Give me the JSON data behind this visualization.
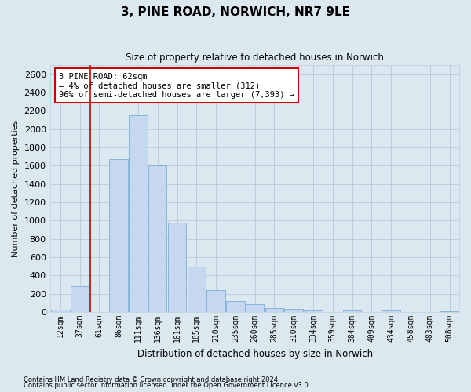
{
  "title": "3, PINE ROAD, NORWICH, NR7 9LE",
  "subtitle": "Size of property relative to detached houses in Norwich",
  "xlabel": "Distribution of detached houses by size in Norwich",
  "ylabel": "Number of detached properties",
  "categories": [
    "12sqm",
    "37sqm",
    "61sqm",
    "86sqm",
    "111sqm",
    "136sqm",
    "161sqm",
    "185sqm",
    "210sqm",
    "235sqm",
    "260sqm",
    "285sqm",
    "310sqm",
    "334sqm",
    "359sqm",
    "384sqm",
    "409sqm",
    "434sqm",
    "458sqm",
    "483sqm",
    "508sqm"
  ],
  "values": [
    25,
    280,
    0,
    1670,
    2150,
    1600,
    975,
    500,
    245,
    120,
    90,
    40,
    35,
    22,
    0,
    15,
    0,
    18,
    0,
    0,
    8
  ],
  "bar_color": "#c5d8f0",
  "bar_edge_color": "#7aadd4",
  "grid_color": "#b8cfe0",
  "background_color": "#dce8f0",
  "plot_bg_color": "#dce8f0",
  "red_line_x": 1.55,
  "annotation_text": "3 PINE ROAD: 62sqm\n← 4% of detached houses are smaller (312)\n96% of semi-detached houses are larger (7,393) →",
  "annotation_box_color": "#ffffff",
  "annotation_box_edge": "#cc0000",
  "footer1": "Contains HM Land Registry data © Crown copyright and database right 2024.",
  "footer2": "Contains public sector information licensed under the Open Government Licence v3.0.",
  "ylim": [
    0,
    2700
  ],
  "yticks": [
    0,
    200,
    400,
    600,
    800,
    1000,
    1200,
    1400,
    1600,
    1800,
    2000,
    2200,
    2400,
    2600
  ]
}
